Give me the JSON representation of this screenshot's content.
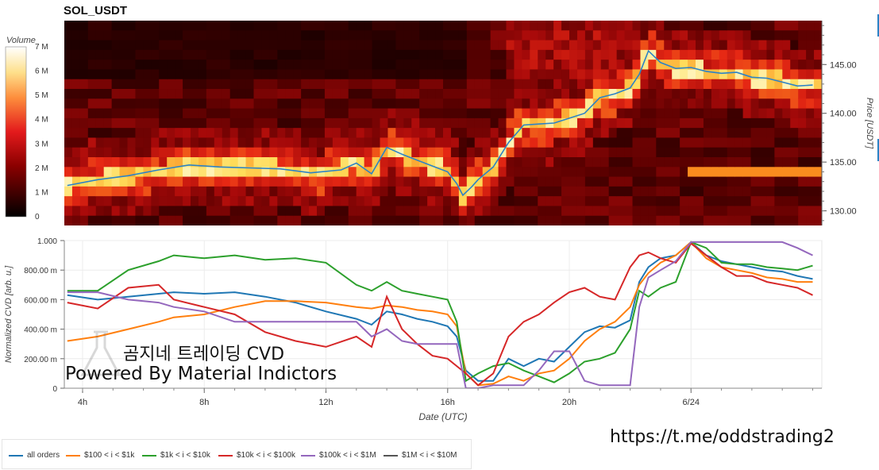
{
  "chart_data": [
    {
      "type": "heatmap",
      "title": "SOL_USDT",
      "colorbar": {
        "label": "Volume",
        "ticks": [
          "0",
          "1 M",
          "2 M",
          "3 M",
          "4 M",
          "5 M",
          "6 M",
          "7 M"
        ],
        "range": [
          0,
          7
        ]
      },
      "y_axis": {
        "label": "Price [USDT]",
        "ticks": [
          "130.00",
          "135.00",
          "140.00",
          "145.00"
        ],
        "tick_values": [
          130,
          135,
          140,
          145
        ],
        "range": [
          128.5,
          149.5
        ],
        "side": "right"
      },
      "price_line": {
        "color": "#2b83c6",
        "x_hours": [
          3.5,
          4.5,
          5.5,
          6.5,
          7.5,
          8.5,
          9.5,
          10.5,
          11.5,
          12.5,
          13.0,
          13.5,
          14.0,
          14.5,
          15.0,
          15.5,
          16.0,
          16.3,
          16.5,
          16.8,
          17.0,
          17.5,
          18.0,
          18.5,
          19.0,
          19.5,
          20.0,
          20.5,
          21.0,
          21.5,
          22.0,
          22.3,
          22.6,
          23.0,
          23.5,
          24.0,
          24.5,
          25.0,
          25.5,
          26.0,
          26.5,
          27.0,
          27.5,
          28.0
        ],
        "price": [
          132.6,
          133.2,
          133.6,
          134.2,
          134.7,
          134.5,
          134.4,
          134.3,
          133.9,
          134.2,
          134.9,
          133.8,
          136.5,
          135.8,
          135.2,
          134.6,
          134.0,
          132.8,
          131.6,
          132.5,
          133.2,
          134.5,
          137.0,
          138.8,
          138.9,
          139.0,
          139.5,
          140.0,
          141.6,
          142.0,
          142.6,
          144.0,
          146.4,
          145.2,
          144.6,
          144.7,
          144.3,
          144.1,
          144.2,
          143.7,
          143.6,
          143.2,
          142.8,
          142.9
        ]
      }
    },
    {
      "type": "line",
      "xlabel": "Date (UTC)",
      "ylabel": "Normalized CVD [arb. u.]",
      "x_ticks": [
        "4h",
        "8h",
        "12h",
        "16h",
        "20h",
        "6/24"
      ],
      "x_tick_hours": [
        4,
        8,
        12,
        16,
        20,
        24
      ],
      "xlim": [
        3.4,
        28.3
      ],
      "y_ticks": [
        "0",
        "200.00 m",
        "400.00 m",
        "600.00 m",
        "800.00 m",
        "1.000"
      ],
      "y_tick_values": [
        0,
        0.2,
        0.4,
        0.6,
        0.8,
        1.0
      ],
      "ylim": [
        0,
        1
      ],
      "grid": true,
      "legend_position": "bottom-left",
      "x_hours": [
        3.5,
        4.5,
        5.5,
        6.5,
        7.0,
        8.0,
        9.0,
        10.0,
        11.0,
        12.0,
        13.0,
        13.5,
        14.0,
        14.5,
        15.0,
        15.5,
        16.0,
        16.3,
        16.6,
        17.0,
        17.5,
        18.0,
        18.5,
        19.0,
        19.5,
        20.0,
        20.5,
        21.0,
        21.5,
        22.0,
        22.3,
        22.6,
        23.0,
        23.5,
        24.0,
        24.5,
        25.0,
        25.5,
        26.0,
        26.5,
        27.0,
        27.5,
        28.0
      ],
      "series": [
        {
          "name": "all orders",
          "color": "#1f77b4",
          "values": [
            0.63,
            0.6,
            0.62,
            0.64,
            0.65,
            0.64,
            0.65,
            0.62,
            0.58,
            0.52,
            0.47,
            0.43,
            0.52,
            0.5,
            0.47,
            0.45,
            0.42,
            0.35,
            0.12,
            0.05,
            0.05,
            0.2,
            0.15,
            0.2,
            0.18,
            0.28,
            0.38,
            0.42,
            0.41,
            0.46,
            0.72,
            0.82,
            0.88,
            0.9,
            0.99,
            0.9,
            0.86,
            0.84,
            0.82,
            0.8,
            0.79,
            0.76,
            0.74
          ]
        },
        {
          "name": "$100 < i < $1k",
          "color": "#ff7f0e",
          "values": [
            0.32,
            0.35,
            0.4,
            0.45,
            0.48,
            0.5,
            0.55,
            0.59,
            0.59,
            0.58,
            0.55,
            0.54,
            0.56,
            0.55,
            0.53,
            0.52,
            0.5,
            0.42,
            0.1,
            0.02,
            0.03,
            0.08,
            0.05,
            0.1,
            0.12,
            0.2,
            0.32,
            0.4,
            0.45,
            0.55,
            0.7,
            0.78,
            0.85,
            0.9,
            0.99,
            0.88,
            0.82,
            0.8,
            0.78,
            0.75,
            0.74,
            0.72,
            0.72
          ]
        },
        {
          "name": "$1k < i < $10k",
          "color": "#2ca02c",
          "values": [
            0.66,
            0.66,
            0.8,
            0.86,
            0.9,
            0.88,
            0.9,
            0.87,
            0.88,
            0.85,
            0.7,
            0.66,
            0.72,
            0.66,
            0.64,
            0.62,
            0.6,
            0.45,
            0.05,
            0.1,
            0.15,
            0.17,
            0.12,
            0.08,
            0.04,
            0.1,
            0.18,
            0.2,
            0.24,
            0.4,
            0.66,
            0.62,
            0.68,
            0.72,
            0.99,
            0.95,
            0.85,
            0.84,
            0.84,
            0.82,
            0.81,
            0.8,
            0.83
          ]
        },
        {
          "name": "$10k < i < $100k",
          "color": "#d62728",
          "values": [
            0.58,
            0.54,
            0.68,
            0.7,
            0.6,
            0.55,
            0.5,
            0.38,
            0.32,
            0.28,
            0.35,
            0.28,
            0.62,
            0.4,
            0.3,
            0.22,
            0.2,
            0.15,
            0.1,
            0.02,
            0.1,
            0.35,
            0.45,
            0.5,
            0.58,
            0.65,
            0.68,
            0.62,
            0.6,
            0.82,
            0.9,
            0.92,
            0.88,
            0.85,
            0.98,
            0.9,
            0.82,
            0.76,
            0.76,
            0.72,
            0.7,
            0.68,
            0.63
          ]
        },
        {
          "name": "$100k < i < $1M",
          "color": "#9467bd",
          "values": [
            0.65,
            0.65,
            0.6,
            0.58,
            0.55,
            0.52,
            0.45,
            0.45,
            0.45,
            0.45,
            0.45,
            0.35,
            0.4,
            0.32,
            0.3,
            0.3,
            0.3,
            0.3,
            0.0,
            0.0,
            0.02,
            0.02,
            0.02,
            0.12,
            0.25,
            0.25,
            0.05,
            0.02,
            0.02,
            0.02,
            0.55,
            0.75,
            0.8,
            0.86,
            0.99,
            0.99,
            0.99,
            0.99,
            0.99,
            0.99,
            0.99,
            0.95,
            0.9
          ]
        },
        {
          "name": "$1M < i < $10M",
          "color": "#555555",
          "values": []
        }
      ]
    }
  ],
  "watermark": {
    "line1": "곰지네 트레이딩 CVD",
    "line2": "Powered By Material Indictors"
  },
  "telegram_url": "https://t.me/oddstrading2"
}
